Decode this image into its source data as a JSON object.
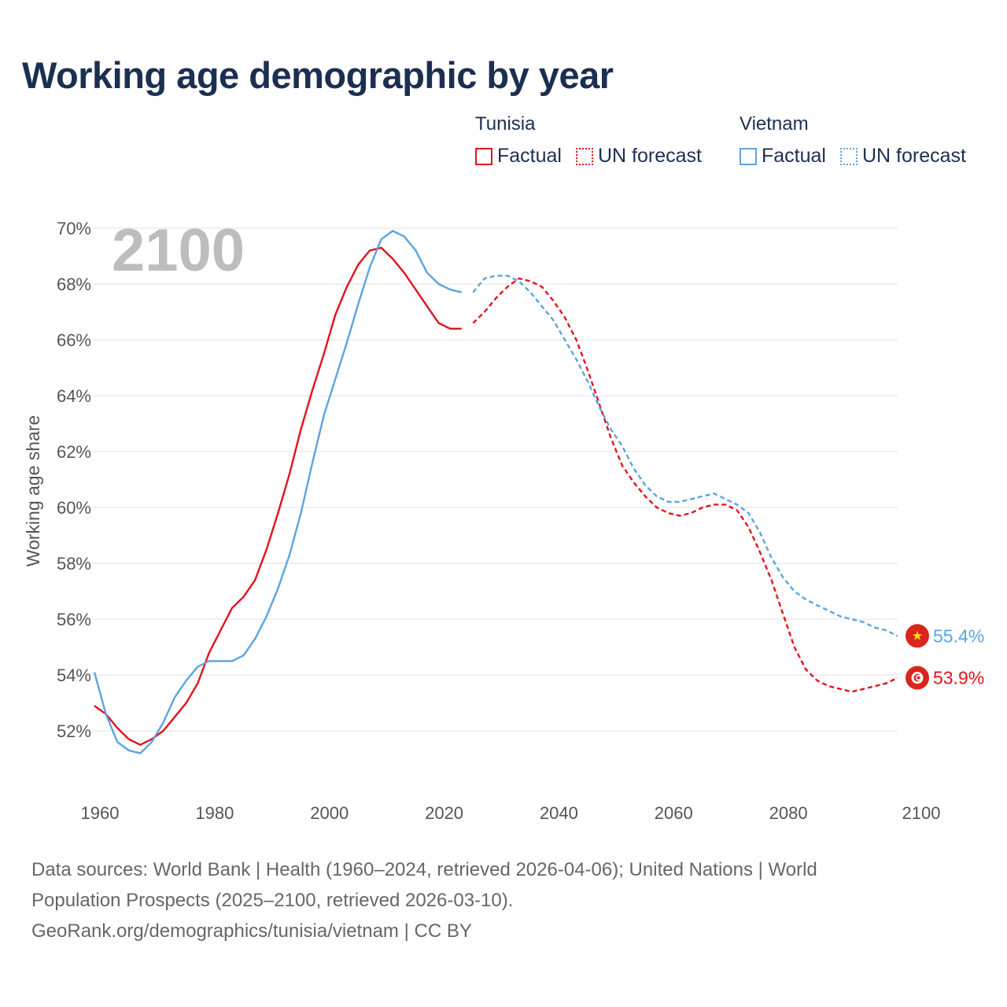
{
  "title": "Working age demographic by year",
  "legend": {
    "groups": [
      {
        "name": "Tunisia",
        "factual_label": "Factual",
        "forecast_label": "UN forecast",
        "color": "#e3121c"
      },
      {
        "name": "Vietnam",
        "factual_label": "Factual",
        "forecast_label": "UN forecast",
        "color": "#5ba4df"
      }
    ]
  },
  "chart_data": {
    "type": "line",
    "title": "Working age demographic by year",
    "xlabel": "",
    "ylabel": "Working age share",
    "current_year_label": "2100",
    "xlim": [
      1960,
      2100
    ],
    "ylim": [
      50,
      70
    ],
    "x_ticks": [
      "1960",
      "1980",
      "2000",
      "2020",
      "2040",
      "2060",
      "2080",
      "2100"
    ],
    "y_ticks": [
      "52%",
      "54%",
      "56%",
      "58%",
      "60%",
      "62%",
      "64%",
      "66%",
      "68%",
      "70%"
    ],
    "forecast_start_year": 2025,
    "series": [
      {
        "name": "Tunisia",
        "color": "#e3121c",
        "end_label": "53.9%",
        "flag": "tunisia-flag-icon",
        "points": [
          [
            1960,
            52.9
          ],
          [
            1962,
            52.6
          ],
          [
            1964,
            52.1
          ],
          [
            1966,
            51.7
          ],
          [
            1968,
            51.5
          ],
          [
            1970,
            51.7
          ],
          [
            1972,
            52.0
          ],
          [
            1974,
            52.5
          ],
          [
            1976,
            53.0
          ],
          [
            1978,
            53.7
          ],
          [
            1980,
            54.8
          ],
          [
            1982,
            55.6
          ],
          [
            1984,
            56.4
          ],
          [
            1986,
            56.8
          ],
          [
            1988,
            57.4
          ],
          [
            1990,
            58.5
          ],
          [
            1992,
            59.8
          ],
          [
            1994,
            61.2
          ],
          [
            1996,
            62.8
          ],
          [
            1998,
            64.2
          ],
          [
            2000,
            65.5
          ],
          [
            2002,
            66.9
          ],
          [
            2004,
            67.9
          ],
          [
            2006,
            68.7
          ],
          [
            2008,
            69.2
          ],
          [
            2010,
            69.3
          ],
          [
            2012,
            68.9
          ],
          [
            2014,
            68.4
          ],
          [
            2016,
            67.8
          ],
          [
            2018,
            67.2
          ],
          [
            2020,
            66.6
          ],
          [
            2022,
            66.4
          ],
          [
            2024,
            66.4
          ],
          [
            2026,
            66.6
          ],
          [
            2028,
            67.0
          ],
          [
            2030,
            67.5
          ],
          [
            2032,
            67.9
          ],
          [
            2034,
            68.2
          ],
          [
            2036,
            68.1
          ],
          [
            2038,
            67.9
          ],
          [
            2040,
            67.4
          ],
          [
            2042,
            66.8
          ],
          [
            2044,
            66.0
          ],
          [
            2046,
            64.9
          ],
          [
            2048,
            63.7
          ],
          [
            2050,
            62.5
          ],
          [
            2052,
            61.5
          ],
          [
            2054,
            60.9
          ],
          [
            2056,
            60.4
          ],
          [
            2058,
            60.0
          ],
          [
            2060,
            59.8
          ],
          [
            2062,
            59.7
          ],
          [
            2064,
            59.8
          ],
          [
            2066,
            60.0
          ],
          [
            2068,
            60.1
          ],
          [
            2070,
            60.1
          ],
          [
            2072,
            59.9
          ],
          [
            2074,
            59.3
          ],
          [
            2076,
            58.4
          ],
          [
            2078,
            57.4
          ],
          [
            2080,
            56.2
          ],
          [
            2082,
            55.0
          ],
          [
            2084,
            54.2
          ],
          [
            2086,
            53.8
          ],
          [
            2088,
            53.6
          ],
          [
            2090,
            53.5
          ],
          [
            2092,
            53.4
          ],
          [
            2094,
            53.5
          ],
          [
            2096,
            53.6
          ],
          [
            2098,
            53.7
          ],
          [
            2100,
            53.9
          ]
        ]
      },
      {
        "name": "Vietnam",
        "color": "#5ba4df",
        "end_label": "55.4%",
        "flag": "vietnam-flag-icon",
        "points": [
          [
            1960,
            54.1
          ],
          [
            1962,
            52.6
          ],
          [
            1964,
            51.6
          ],
          [
            1966,
            51.3
          ],
          [
            1968,
            51.2
          ],
          [
            1970,
            51.6
          ],
          [
            1972,
            52.3
          ],
          [
            1974,
            53.2
          ],
          [
            1976,
            53.8
          ],
          [
            1978,
            54.3
          ],
          [
            1980,
            54.5
          ],
          [
            1982,
            54.5
          ],
          [
            1984,
            54.5
          ],
          [
            1986,
            54.7
          ],
          [
            1988,
            55.3
          ],
          [
            1990,
            56.1
          ],
          [
            1992,
            57.1
          ],
          [
            1994,
            58.3
          ],
          [
            1996,
            59.8
          ],
          [
            1998,
            61.6
          ],
          [
            2000,
            63.3
          ],
          [
            2002,
            64.6
          ],
          [
            2004,
            65.9
          ],
          [
            2006,
            67.3
          ],
          [
            2008,
            68.6
          ],
          [
            2010,
            69.6
          ],
          [
            2012,
            69.9
          ],
          [
            2014,
            69.7
          ],
          [
            2016,
            69.2
          ],
          [
            2018,
            68.4
          ],
          [
            2020,
            68.0
          ],
          [
            2022,
            67.8
          ],
          [
            2024,
            67.7
          ],
          [
            2026,
            67.7
          ],
          [
            2028,
            68.2
          ],
          [
            2030,
            68.3
          ],
          [
            2032,
            68.3
          ],
          [
            2034,
            68.1
          ],
          [
            2036,
            67.7
          ],
          [
            2038,
            67.2
          ],
          [
            2040,
            66.7
          ],
          [
            2042,
            66.0
          ],
          [
            2044,
            65.3
          ],
          [
            2046,
            64.5
          ],
          [
            2048,
            63.6
          ],
          [
            2050,
            62.8
          ],
          [
            2052,
            62.2
          ],
          [
            2054,
            61.4
          ],
          [
            2056,
            60.8
          ],
          [
            2058,
            60.4
          ],
          [
            2060,
            60.2
          ],
          [
            2062,
            60.2
          ],
          [
            2064,
            60.3
          ],
          [
            2066,
            60.4
          ],
          [
            2068,
            60.5
          ],
          [
            2070,
            60.3
          ],
          [
            2072,
            60.1
          ],
          [
            2074,
            59.8
          ],
          [
            2076,
            59.1
          ],
          [
            2078,
            58.2
          ],
          [
            2080,
            57.5
          ],
          [
            2082,
            57.0
          ],
          [
            2084,
            56.7
          ],
          [
            2086,
            56.5
          ],
          [
            2088,
            56.3
          ],
          [
            2090,
            56.1
          ],
          [
            2092,
            56.0
          ],
          [
            2094,
            55.9
          ],
          [
            2096,
            55.7
          ],
          [
            2098,
            55.6
          ],
          [
            2100,
            55.4
          ]
        ]
      }
    ]
  },
  "source": {
    "line1": "Data sources: World Bank | Health (1960–2024, retrieved 2026-04-06); United Nations | World",
    "line2": "Population Prospects (2025–2100, retrieved 2026-03-10).",
    "line3": "GeoRank.org/demographics/tunisia/vietnam | CC BY"
  }
}
